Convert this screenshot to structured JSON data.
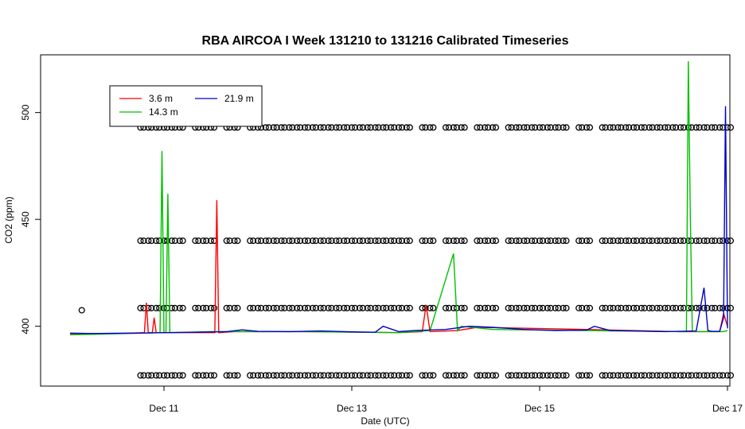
{
  "chart_data": {
    "type": "line",
    "title": "RBA AIRCOA I  Week 131210 to 131216  Calibrated Timeseries",
    "xlabel": "Date (UTC)",
    "ylabel": "CO2 (ppm)",
    "x_unit": "days",
    "xlim": [
      "Dec 10 00:00",
      "Dec 17 00:00"
    ],
    "ylim": [
      372,
      527
    ],
    "x_ticks": [
      "Dec 11",
      "Dec 13",
      "Dec 15",
      "Dec 17"
    ],
    "y_ticks": [
      400,
      450,
      500
    ],
    "grid": false,
    "legend_position": "top-left",
    "series": [
      {
        "name": "3.6 m",
        "color": "#ff0000",
        "x": [
          "Dec 10 00:00",
          "Dec 10 12:00",
          "Dec 10 19:00",
          "Dec 10 19:30",
          "Dec 10 20:00",
          "Dec 10 21:00",
          "Dec 10 21:30",
          "Dec 10 22:00",
          "Dec 11 00:00",
          "Dec 11 06:00",
          "Dec 11 13:00",
          "Dec 11 13:30",
          "Dec 11 14:00",
          "Dec 11 18:00",
          "Dec 12 12:00",
          "Dec 13 12:00",
          "Dec 13 18:00",
          "Dec 13 19:00",
          "Dec 13 20:00",
          "Dec 14 03:00",
          "Dec 14 08:00",
          "Dec 15 12:00",
          "Dec 16 12:00",
          "Dec 16 22:00",
          "Dec 16 23:00",
          "Dec 17 00:00"
        ],
        "y": [
          396.5,
          396.6,
          397,
          411,
          397,
          397,
          404,
          397,
          397,
          397,
          397,
          459,
          397,
          397.5,
          397.5,
          397,
          397.5,
          410,
          397.5,
          398,
          399.5,
          398.5,
          397.5,
          397.5,
          406,
          400
        ]
      },
      {
        "name": "14.3 m",
        "color": "#00c000",
        "x": [
          "Dec 10 00:00",
          "Dec 10 12:00",
          "Dec 10 23:00",
          "Dec 10 23:30",
          "Dec 11 00:00",
          "Dec 11 00:30",
          "Dec 11 01:00",
          "Dec 11 01:30",
          "Dec 11 02:00",
          "Dec 11 12:00",
          "Dec 12 12:00",
          "Dec 13 12:00",
          "Dec 13 20:00",
          "Dec 14 02:00",
          "Dec 14 03:00",
          "Dec 14 04:00",
          "Dec 14 12:00",
          "Dec 15 12:00",
          "Dec 16 12:00",
          "Dec 16 13:30",
          "Dec 16 14:00",
          "Dec 16 14:30",
          "Dec 16 15:00",
          "Dec 16 20:00",
          "Dec 16 23:00",
          "Dec 17 00:00"
        ],
        "y": [
          396,
          396.5,
          397,
          482,
          397,
          397,
          462,
          397,
          397,
          397.5,
          397.5,
          397,
          398,
          434,
          398,
          400,
          398.5,
          398,
          397.5,
          397.5,
          524,
          452,
          397.5,
          397.5,
          397.5,
          398
        ]
      },
      {
        "name": "21.9 m",
        "color": "#0000cc",
        "x": [
          "Dec 10 00:00",
          "Dec 10 06:00",
          "Dec 10 12:00",
          "Dec 10 18:00",
          "Dec 11 00:00",
          "Dec 11 08:00",
          "Dec 11 16:00",
          "Dec 11 20:00",
          "Dec 12 00:00",
          "Dec 12 08:00",
          "Dec 12 16:00",
          "Dec 13 00:00",
          "Dec 13 06:00",
          "Dec 13 08:00",
          "Dec 13 12:00",
          "Dec 13 16:00",
          "Dec 14 00:00",
          "Dec 14 06:00",
          "Dec 14 12:00",
          "Dec 14 20:00",
          "Dec 15 04:00",
          "Dec 15 12:00",
          "Dec 15 14:00",
          "Dec 15 18:00",
          "Dec 16 00:00",
          "Dec 16 08:00",
          "Dec 16 16:00",
          "Dec 16 18:00",
          "Dec 16 19:00",
          "Dec 16 20:00",
          "Dec 16 22:00",
          "Dec 16 23:00",
          "Dec 16 23:30",
          "Dec 17 00:00"
        ],
        "y": [
          396.8,
          396.6,
          396.7,
          396.8,
          397,
          397.2,
          397.5,
          398.3,
          397.6,
          397.5,
          397.8,
          397.4,
          397.2,
          400,
          397.5,
          398,
          398.5,
          400,
          399.5,
          398.5,
          398,
          398.2,
          400,
          398,
          397.8,
          397.5,
          397.8,
          418,
          398,
          397.6,
          397.6,
          404,
          503,
          399
        ]
      }
    ],
    "flags": {
      "marker": "open-circle",
      "color": "#000000",
      "levels": [
        377,
        408.5,
        440,
        493
      ],
      "extra_points": [
        [
          "Dec 10 03:00",
          407.5
        ]
      ],
      "hours_with_data": [
        "Dec 10 18:00",
        "Dec 10 20:00",
        "Dec 10 22:00",
        "Dec 11 00:00",
        "Dec 11 02:00",
        "Dec 11 04:00",
        "Dec 11 08:00",
        "Dec 11 10:00",
        "Dec 11 12:00",
        "Dec 11 16:00",
        "Dec 11 18:00",
        "Dec 11 22:00",
        "Dec 12 00:00",
        "Dec 12 02:00",
        "Dec 12 04:00",
        "Dec 12 06:00",
        "Dec 12 08:00",
        "Dec 12 10:00",
        "Dec 12 12:00",
        "Dec 12 14:00",
        "Dec 12 16:00",
        "Dec 12 18:00",
        "Dec 12 20:00",
        "Dec 12 22:00",
        "Dec 13 00:00",
        "Dec 13 02:00",
        "Dec 13 04:00",
        "Dec 13 06:00",
        "Dec 13 08:00",
        "Dec 13 10:00",
        "Dec 13 12:00",
        "Dec 13 14:00",
        "Dec 13 18:00",
        "Dec 13 20:00",
        "Dec 14 00:00",
        "Dec 14 02:00",
        "Dec 14 04:00",
        "Dec 14 08:00",
        "Dec 14 10:00",
        "Dec 14 12:00",
        "Dec 14 16:00",
        "Dec 14 18:00",
        "Dec 14 20:00",
        "Dec 14 22:00",
        "Dec 15 00:00",
        "Dec 15 02:00",
        "Dec 15 04:00",
        "Dec 15 06:00",
        "Dec 15 10:00",
        "Dec 15 12:00",
        "Dec 15 16:00",
        "Dec 15 18:00",
        "Dec 15 20:00",
        "Dec 15 22:00",
        "Dec 16 00:00",
        "Dec 16 02:00",
        "Dec 16 04:00",
        "Dec 16 06:00",
        "Dec 16 08:00",
        "Dec 16 10:00",
        "Dec 16 12:00",
        "Dec 16 14:00",
        "Dec 16 16:00",
        "Dec 16 18:00",
        "Dec 16 20:00",
        "Dec 16 22:00",
        "Dec 17 00:00"
      ]
    }
  }
}
